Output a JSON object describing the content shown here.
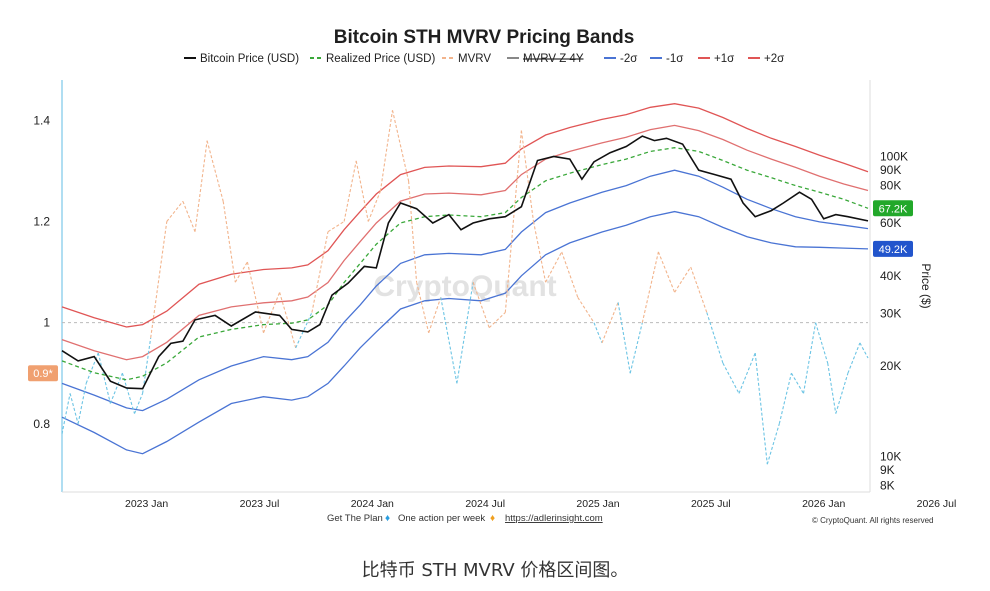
{
  "chart_data": {
    "type": "line",
    "title": "Bitcoin STH MVRV Pricing Bands",
    "legend": [
      {
        "key": "btc",
        "label": "Bitcoin Price (USD)",
        "color": "#111111",
        "dash": "none",
        "strike": false
      },
      {
        "key": "realized",
        "label": "Realized Price (USD)",
        "color": "#3aa83a",
        "dash": "4,3",
        "strike": false
      },
      {
        "key": "mvrv",
        "label": "MVRV",
        "color": "#f2b48c",
        "dash": "4,3",
        "strike": false
      },
      {
        "key": "mvrvz",
        "label": "MVRV Z 4Y",
        "color": "#888888",
        "dash": "none",
        "strike": true
      },
      {
        "key": "m2",
        "label": "-2σ",
        "color": "#4a74d4",
        "dash": "none",
        "strike": false
      },
      {
        "key": "m1",
        "label": "-1σ",
        "color": "#4a74d4",
        "dash": "none",
        "strike": false
      },
      {
        "key": "p1",
        "label": "+1σ",
        "color": "#e05555",
        "dash": "none",
        "strike": false
      },
      {
        "key": "p2",
        "label": "+2σ",
        "color": "#e05555",
        "dash": "none",
        "strike": false
      }
    ],
    "x_ticks": [
      "2023 Jan",
      "2023 Jul",
      "2024 Jan",
      "2024 Jul",
      "2025 Jan",
      "2025 Jul",
      "2026 Jan",
      "2026 Jul"
    ],
    "x_tick_t": [
      0.105,
      0.245,
      0.385,
      0.525,
      0.665,
      0.805,
      0.945,
      1.085
    ],
    "left_axis": {
      "ticks": [
        1.4,
        1.2,
        1,
        0.8
      ],
      "tick_labels": [
        "1.4",
        "1.2",
        "1",
        "0.8"
      ],
      "range": [
        0.665,
        1.48
      ],
      "highlight": {
        "value": 0.9,
        "label": "0.9*",
        "color": "#f0a070"
      },
      "reference_line": 1.0
    },
    "right_axis": {
      "label": "Price ($)",
      "scale": "log",
      "ticks": [
        100000,
        90000,
        80000,
        60000,
        40000,
        30000,
        20000,
        10000,
        9000,
        8000
      ],
      "tick_labels": [
        "100K",
        "90K",
        "80K",
        "60K",
        "40K",
        "30K",
        "20K",
        "10K",
        "9K",
        "8K"
      ],
      "range": [
        7600,
        180000
      ],
      "badges": [
        {
          "value": 67200,
          "label": "67.2K",
          "color": "#22a82a"
        },
        {
          "value": 49200,
          "label": "49.2K",
          "color": "#2255cc"
        }
      ]
    },
    "series": {
      "btc": [
        [
          0.0,
          22500
        ],
        [
          0.02,
          20800
        ],
        [
          0.04,
          21500
        ],
        [
          0.06,
          17800
        ],
        [
          0.08,
          16900
        ],
        [
          0.1,
          16800
        ],
        [
          0.12,
          21500
        ],
        [
          0.135,
          23800
        ],
        [
          0.15,
          24200
        ],
        [
          0.165,
          28500
        ],
        [
          0.19,
          29500
        ],
        [
          0.21,
          27200
        ],
        [
          0.24,
          30300
        ],
        [
          0.27,
          29500
        ],
        [
          0.285,
          26500
        ],
        [
          0.305,
          26000
        ],
        [
          0.32,
          27500
        ],
        [
          0.335,
          34500
        ],
        [
          0.355,
          37800
        ],
        [
          0.375,
          43000
        ],
        [
          0.39,
          42500
        ],
        [
          0.405,
          60000
        ],
        [
          0.42,
          70000
        ],
        [
          0.44,
          67000
        ],
        [
          0.46,
          60000
        ],
        [
          0.48,
          64000
        ],
        [
          0.495,
          57000
        ],
        [
          0.51,
          60000
        ],
        [
          0.53,
          62000
        ],
        [
          0.55,
          63000
        ],
        [
          0.57,
          68000
        ],
        [
          0.59,
          97000
        ],
        [
          0.61,
          100000
        ],
        [
          0.63,
          98000
        ],
        [
          0.645,
          84000
        ],
        [
          0.66,
          96000
        ],
        [
          0.68,
          103000
        ],
        [
          0.7,
          108000
        ],
        [
          0.72,
          117000
        ],
        [
          0.735,
          113000
        ],
        [
          0.75,
          115000
        ],
        [
          0.77,
          110000
        ],
        [
          0.79,
          90000
        ],
        [
          0.81,
          87000
        ],
        [
          0.83,
          84000
        ],
        [
          0.845,
          70000
        ],
        [
          0.86,
          63000
        ],
        [
          0.88,
          66000
        ],
        [
          0.895,
          70000
        ],
        [
          0.915,
          76000
        ],
        [
          0.93,
          72000
        ],
        [
          0.945,
          62000
        ],
        [
          0.96,
          64000
        ],
        [
          0.975,
          63000
        ],
        [
          1.0,
          61000
        ]
      ],
      "realized": [
        [
          0.0,
          20800
        ],
        [
          0.04,
          19000
        ],
        [
          0.08,
          18000
        ],
        [
          0.1,
          18500
        ],
        [
          0.13,
          20500
        ],
        [
          0.17,
          25000
        ],
        [
          0.21,
          26500
        ],
        [
          0.25,
          27500
        ],
        [
          0.285,
          27800
        ],
        [
          0.305,
          28500
        ],
        [
          0.33,
          32000
        ],
        [
          0.35,
          38000
        ],
        [
          0.37,
          44000
        ],
        [
          0.39,
          51000
        ],
        [
          0.42,
          60000
        ],
        [
          0.45,
          63000
        ],
        [
          0.48,
          63800
        ],
        [
          0.52,
          63000
        ],
        [
          0.55,
          65000
        ],
        [
          0.57,
          73000
        ],
        [
          0.6,
          83000
        ],
        [
          0.63,
          88000
        ],
        [
          0.67,
          94000
        ],
        [
          0.7,
          98000
        ],
        [
          0.73,
          104000
        ],
        [
          0.76,
          107000
        ],
        [
          0.79,
          104000
        ],
        [
          0.82,
          97000
        ],
        [
          0.85,
          90000
        ],
        [
          0.88,
          85000
        ],
        [
          0.91,
          80000
        ],
        [
          0.94,
          76000
        ],
        [
          0.97,
          72000
        ],
        [
          1.0,
          67200
        ]
      ],
      "mvrv": [
        [
          0.0,
          0.78
        ],
        [
          0.01,
          0.86
        ],
        [
          0.02,
          0.8
        ],
        [
          0.03,
          0.88
        ],
        [
          0.045,
          0.94
        ],
        [
          0.06,
          0.84
        ],
        [
          0.075,
          0.9
        ],
        [
          0.09,
          0.82
        ],
        [
          0.1,
          0.86
        ],
        [
          0.11,
          0.97
        ],
        [
          0.13,
          1.2
        ],
        [
          0.15,
          1.24
        ],
        [
          0.165,
          1.18
        ],
        [
          0.18,
          1.36
        ],
        [
          0.2,
          1.24
        ],
        [
          0.215,
          1.08
        ],
        [
          0.23,
          1.12
        ],
        [
          0.25,
          0.98
        ],
        [
          0.27,
          1.06
        ],
        [
          0.29,
          0.95
        ],
        [
          0.31,
          1.02
        ],
        [
          0.33,
          1.18
        ],
        [
          0.35,
          1.2
        ],
        [
          0.365,
          1.32
        ],
        [
          0.38,
          1.2
        ],
        [
          0.395,
          1.26
        ],
        [
          0.41,
          1.42
        ],
        [
          0.43,
          1.28
        ],
        [
          0.44,
          1.08
        ],
        [
          0.455,
          0.98
        ],
        [
          0.47,
          1.05
        ],
        [
          0.49,
          0.88
        ],
        [
          0.51,
          1.08
        ],
        [
          0.53,
          0.99
        ],
        [
          0.55,
          1.02
        ],
        [
          0.57,
          1.38
        ],
        [
          0.585,
          1.2
        ],
        [
          0.6,
          1.08
        ],
        [
          0.62,
          1.14
        ],
        [
          0.64,
          1.05
        ],
        [
          0.66,
          1.0
        ],
        [
          0.67,
          0.96
        ],
        [
          0.69,
          1.04
        ],
        [
          0.705,
          0.9
        ],
        [
          0.72,
          1.0
        ],
        [
          0.74,
          1.14
        ],
        [
          0.76,
          1.06
        ],
        [
          0.78,
          1.11
        ],
        [
          0.8,
          1.02
        ],
        [
          0.82,
          0.92
        ],
        [
          0.84,
          0.86
        ],
        [
          0.86,
          0.94
        ],
        [
          0.875,
          0.72
        ],
        [
          0.89,
          0.8
        ],
        [
          0.905,
          0.9
        ],
        [
          0.92,
          0.86
        ],
        [
          0.935,
          1.0
        ],
        [
          0.95,
          0.92
        ],
        [
          0.96,
          0.82
        ],
        [
          0.975,
          0.9
        ],
        [
          0.99,
          0.96
        ],
        [
          1.0,
          0.93
        ]
      ],
      "m2": [
        [
          0.0,
          13500
        ],
        [
          0.04,
          12000
        ],
        [
          0.08,
          10500
        ],
        [
          0.1,
          10200
        ],
        [
          0.13,
          11200
        ],
        [
          0.17,
          13000
        ],
        [
          0.21,
          15000
        ],
        [
          0.25,
          15800
        ],
        [
          0.285,
          15400
        ],
        [
          0.305,
          15800
        ],
        [
          0.33,
          17500
        ],
        [
          0.35,
          20000
        ],
        [
          0.37,
          23000
        ],
        [
          0.39,
          26000
        ],
        [
          0.42,
          31000
        ],
        [
          0.45,
          33000
        ],
        [
          0.48,
          33600
        ],
        [
          0.52,
          33000
        ],
        [
          0.55,
          35000
        ],
        [
          0.57,
          40000
        ],
        [
          0.6,
          47000
        ],
        [
          0.63,
          51500
        ],
        [
          0.67,
          56000
        ],
        [
          0.7,
          59000
        ],
        [
          0.73,
          63000
        ],
        [
          0.76,
          65500
        ],
        [
          0.79,
          63000
        ],
        [
          0.82,
          58000
        ],
        [
          0.85,
          54000
        ],
        [
          0.88,
          51500
        ],
        [
          0.91,
          50000
        ],
        [
          0.94,
          49800
        ],
        [
          0.97,
          49500
        ],
        [
          1.0,
          49200
        ]
      ],
      "m1": [
        [
          0.0,
          17500
        ],
        [
          0.04,
          16000
        ],
        [
          0.08,
          14500
        ],
        [
          0.1,
          14200
        ],
        [
          0.13,
          15500
        ],
        [
          0.17,
          18000
        ],
        [
          0.21,
          20000
        ],
        [
          0.25,
          21500
        ],
        [
          0.285,
          21000
        ],
        [
          0.305,
          21500
        ],
        [
          0.33,
          24000
        ],
        [
          0.35,
          28000
        ],
        [
          0.37,
          32000
        ],
        [
          0.39,
          37000
        ],
        [
          0.42,
          44000
        ],
        [
          0.45,
          47000
        ],
        [
          0.48,
          47500
        ],
        [
          0.52,
          47000
        ],
        [
          0.55,
          49000
        ],
        [
          0.57,
          56000
        ],
        [
          0.6,
          65000
        ],
        [
          0.63,
          70000
        ],
        [
          0.67,
          76000
        ],
        [
          0.7,
          80000
        ],
        [
          0.73,
          86000
        ],
        [
          0.76,
          90000
        ],
        [
          0.79,
          86000
        ],
        [
          0.82,
          79000
        ],
        [
          0.85,
          72000
        ],
        [
          0.88,
          67000
        ],
        [
          0.91,
          63000
        ],
        [
          0.94,
          60500
        ],
        [
          0.97,
          59000
        ],
        [
          1.0,
          57500
        ]
      ],
      "p1": [
        [
          0.0,
          24500
        ],
        [
          0.04,
          22500
        ],
        [
          0.08,
          21000
        ],
        [
          0.1,
          21500
        ],
        [
          0.13,
          24000
        ],
        [
          0.17,
          29500
        ],
        [
          0.21,
          31500
        ],
        [
          0.25,
          32500
        ],
        [
          0.285,
          33000
        ],
        [
          0.305,
          34000
        ],
        [
          0.33,
          38000
        ],
        [
          0.35,
          45000
        ],
        [
          0.37,
          52000
        ],
        [
          0.39,
          60000
        ],
        [
          0.42,
          71000
        ],
        [
          0.45,
          75000
        ],
        [
          0.48,
          75500
        ],
        [
          0.52,
          74500
        ],
        [
          0.55,
          77000
        ],
        [
          0.57,
          87000
        ],
        [
          0.6,
          98000
        ],
        [
          0.63,
          104000
        ],
        [
          0.67,
          111000
        ],
        [
          0.7,
          116000
        ],
        [
          0.73,
          123000
        ],
        [
          0.76,
          127000
        ],
        [
          0.79,
          122000
        ],
        [
          0.82,
          114000
        ],
        [
          0.85,
          105000
        ],
        [
          0.88,
          98000
        ],
        [
          0.91,
          92000
        ],
        [
          0.94,
          86000
        ],
        [
          0.97,
          81000
        ],
        [
          1.0,
          77000
        ]
      ],
      "p2": [
        [
          0.0,
          31500
        ],
        [
          0.04,
          29000
        ],
        [
          0.08,
          27000
        ],
        [
          0.1,
          27500
        ],
        [
          0.13,
          30500
        ],
        [
          0.17,
          37500
        ],
        [
          0.21,
          40500
        ],
        [
          0.25,
          42000
        ],
        [
          0.285,
          42500
        ],
        [
          0.305,
          43500
        ],
        [
          0.33,
          48500
        ],
        [
          0.35,
          57000
        ],
        [
          0.37,
          65500
        ],
        [
          0.39,
          75000
        ],
        [
          0.42,
          87000
        ],
        [
          0.45,
          92000
        ],
        [
          0.48,
          93000
        ],
        [
          0.52,
          92500
        ],
        [
          0.55,
          95000
        ],
        [
          0.57,
          106000
        ],
        [
          0.6,
          118000
        ],
        [
          0.63,
          125000
        ],
        [
          0.67,
          133000
        ],
        [
          0.7,
          138000
        ],
        [
          0.73,
          146000
        ],
        [
          0.76,
          150000
        ],
        [
          0.79,
          145000
        ],
        [
          0.82,
          135000
        ],
        [
          0.85,
          124000
        ],
        [
          0.88,
          115000
        ],
        [
          0.91,
          108000
        ],
        [
          0.94,
          101000
        ],
        [
          0.97,
          95000
        ],
        [
          1.0,
          89000
        ]
      ]
    },
    "watermark": "CryptoQuant",
    "footer": {
      "plan": "Get The Plan",
      "action": "One action per week",
      "link": "https://adlerinsight.com",
      "copyright": "© CryptoQuant. All rights reserved"
    }
  },
  "caption": "比特币 STH MVRV 价格区间图。"
}
